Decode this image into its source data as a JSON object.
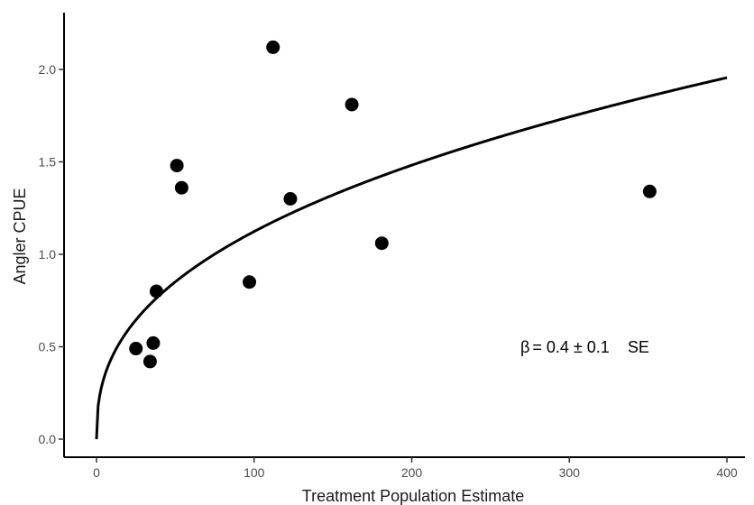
{
  "chart_data": {
    "type": "scatter",
    "title": "",
    "xlabel": "Treatment Population Estimate",
    "ylabel": "Angler CPUE",
    "xlim": [
      -20,
      410
    ],
    "ylim": [
      -0.1,
      2.3
    ],
    "x_ticks": [
      0,
      100,
      200,
      300,
      400
    ],
    "x_tick_labels": [
      "0",
      "100",
      "200",
      "300",
      "400"
    ],
    "y_ticks": [
      0.0,
      0.5,
      1.0,
      1.5,
      2.0
    ],
    "y_tick_labels": [
      "0.0",
      "0.5",
      "1.0",
      "1.5",
      "2.0"
    ],
    "grid": false,
    "legend": "none",
    "points": [
      {
        "x": 25,
        "y": 0.49
      },
      {
        "x": 34,
        "y": 0.42
      },
      {
        "x": 36,
        "y": 0.52
      },
      {
        "x": 38,
        "y": 0.8
      },
      {
        "x": 51,
        "y": 1.48
      },
      {
        "x": 54,
        "y": 1.36
      },
      {
        "x": 97,
        "y": 0.85
      },
      {
        "x": 112,
        "y": 2.12
      },
      {
        "x": 123,
        "y": 1.3
      },
      {
        "x": 162,
        "y": 1.81
      },
      {
        "x": 181,
        "y": 1.06
      },
      {
        "x": 351,
        "y": 1.34
      }
    ],
    "fit": {
      "type": "power",
      "coefficient": 0.178,
      "exponent": 0.4,
      "x_range": [
        0,
        400
      ]
    },
    "annotation": {
      "beta": "β",
      "equals": "= 0.4 ± 0.1",
      "se": "SE"
    },
    "colors": {
      "points": "#000000",
      "line": "#000000",
      "axis": "#000000"
    }
  }
}
